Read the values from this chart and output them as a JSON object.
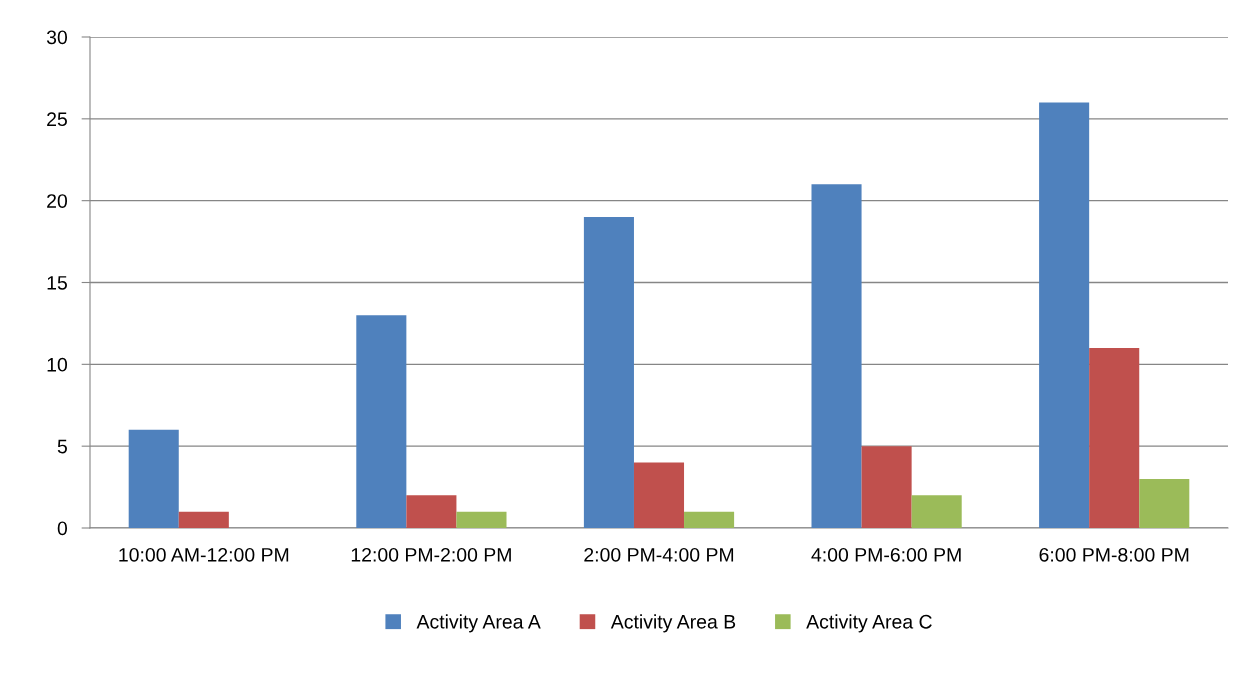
{
  "chart_data": {
    "type": "bar",
    "categories": [
      "10:00 AM-12:00 PM",
      "12:00 PM-2:00 PM",
      "2:00 PM-4:00 PM",
      "4:00 PM-6:00 PM",
      "6:00 PM-8:00 PM"
    ],
    "series": [
      {
        "name": "Activity Area A",
        "color": "#4f81bd",
        "values": [
          6,
          13,
          19,
          21,
          26
        ]
      },
      {
        "name": "Activity Area B",
        "color": "#c0504d",
        "values": [
          1,
          2,
          4,
          5,
          11
        ]
      },
      {
        "name": "Activity Area C",
        "color": "#9bbb59",
        "values": [
          0,
          1,
          1,
          2,
          3
        ]
      }
    ],
    "ylim": [
      0,
      30
    ],
    "yticks": [
      0,
      5,
      10,
      15,
      20,
      25,
      30
    ],
    "grid": "y",
    "legend": "bottom"
  }
}
